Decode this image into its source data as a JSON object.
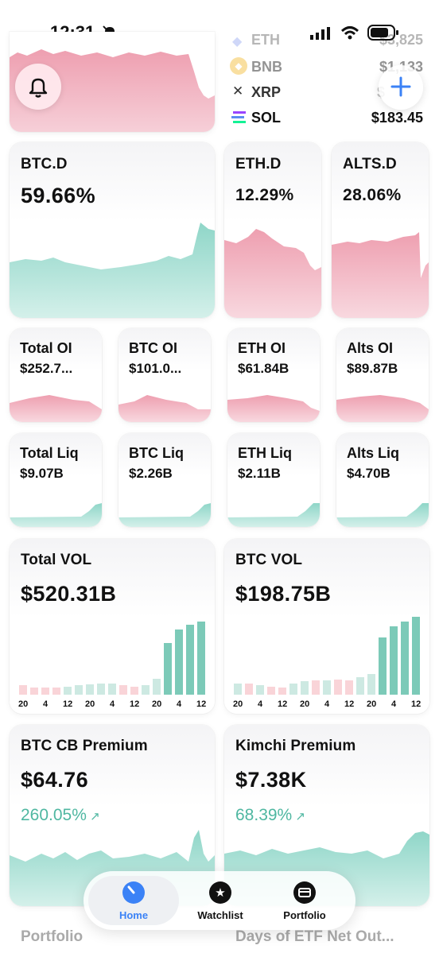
{
  "status_bar": {
    "time": "12:31"
  },
  "ticker": {
    "items": [
      {
        "symbol": "ETH",
        "price": "$3,825"
      },
      {
        "symbol": "BNB",
        "price": "$1,133"
      },
      {
        "symbol": "XRP",
        "price": "$"
      },
      {
        "symbol": "SOL",
        "price": "$183.45"
      }
    ]
  },
  "dominance": [
    {
      "label": "BTC.D",
      "value": "59.66%"
    },
    {
      "label": "ETH.D",
      "value": "12.29%"
    },
    {
      "label": "ALTS.D",
      "value": "28.06%"
    }
  ],
  "open_interest": [
    {
      "label": "Total OI",
      "value": "$252.7..."
    },
    {
      "label": "BTC OI",
      "value": "$101.0..."
    },
    {
      "label": "ETH OI",
      "value": "$61.84B"
    },
    {
      "label": "Alts OI",
      "value": "$89.87B"
    }
  ],
  "liquidations": [
    {
      "label": "Total Liq",
      "value": "$9.07B"
    },
    {
      "label": "BTC Liq",
      "value": "$2.26B"
    },
    {
      "label": "ETH Liq",
      "value": "$2.11B"
    },
    {
      "label": "Alts Liq",
      "value": "$4.70B"
    }
  ],
  "volume": [
    {
      "label": "Total VOL",
      "value": "$520.31B",
      "ticks": [
        "20",
        "4",
        "12",
        "20",
        "4",
        "12",
        "20",
        "4",
        "12"
      ]
    },
    {
      "label": "BTC VOL",
      "value": "$198.75B",
      "ticks": [
        "20",
        "4",
        "12",
        "20",
        "4",
        "12",
        "20",
        "4",
        "12"
      ]
    }
  ],
  "premium": [
    {
      "label": "BTC CB Premium",
      "value": "$64.76",
      "change": "260.05%"
    },
    {
      "label": "Kimchi Premium",
      "value": "$7.38K",
      "change": "68.39%"
    }
  ],
  "bottom_cards": [
    {
      "label": "Portfolio"
    },
    {
      "label": "Days of ETF Net Out..."
    }
  ],
  "tab_bar": {
    "items": [
      {
        "label": "Home"
      },
      {
        "label": "Watchlist"
      },
      {
        "label": "Portfolio"
      }
    ]
  },
  "colors": {
    "green": "#4fb7a1",
    "red": "#e27a8f",
    "blue": "#3b82f6"
  }
}
